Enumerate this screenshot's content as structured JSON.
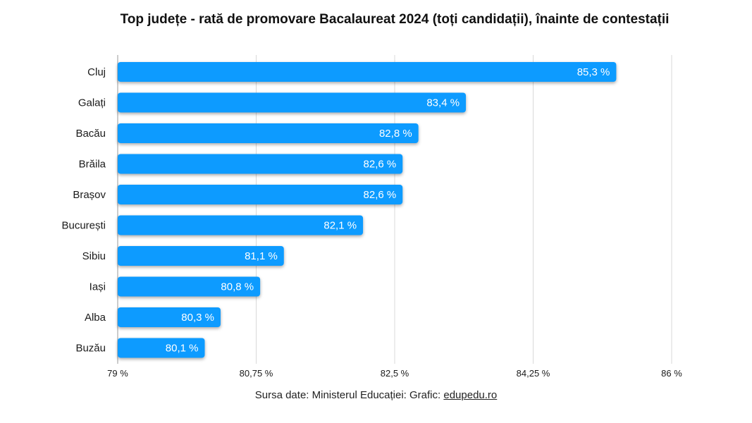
{
  "chart_data": {
    "type": "bar",
    "orientation": "horizontal",
    "title": "Top județe - rată de promovare Bacalaureat 2024 (toți candidații), înainte de contestații",
    "categories": [
      "Cluj",
      "Galați",
      "Bacău",
      "Brăila",
      "Brașov",
      "București",
      "Sibiu",
      "Iași",
      "Alba",
      "Buzău"
    ],
    "values": [
      85.3,
      83.4,
      82.8,
      82.6,
      82.6,
      82.1,
      81.1,
      80.8,
      80.3,
      80.1
    ],
    "value_labels": [
      "85,3 %",
      "83,4 %",
      "82,8 %",
      "82,6 %",
      "82,6 %",
      "82,1 %",
      "81,1 %",
      "80,8 %",
      "80,3 %",
      "80,1 %"
    ],
    "xlim": [
      79,
      86
    ],
    "xticks": [
      79,
      80.75,
      82.5,
      84.25,
      86
    ],
    "xtick_labels": [
      "79 %",
      "80,75 %",
      "82,5 %",
      "84,25 %",
      "86 %"
    ],
    "grid": true,
    "bar_color": "#0f9bff"
  },
  "source": {
    "text": "Sursa date: Ministerul Educației: Grafic: ",
    "link": "edupedu.ro"
  }
}
